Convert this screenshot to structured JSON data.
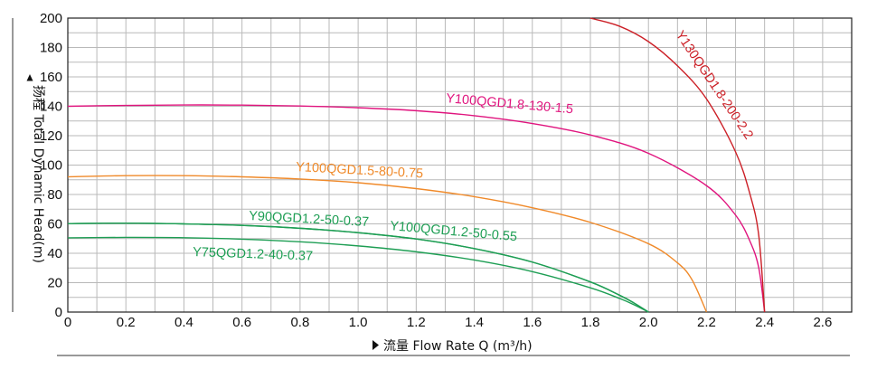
{
  "chart_data": {
    "type": "line",
    "title": "",
    "xlabel": "流量 Flow Rate Q (m³/h)",
    "ylabel": "扬程 Total Dynamic Head(m)",
    "xlim": [
      0,
      2.7
    ],
    "ylim": [
      0,
      200
    ],
    "x_ticks": [
      "0",
      "0.2",
      "0.4",
      "0.6",
      "0.8",
      "1.0",
      "1.2",
      "1.4",
      "1.6",
      "1.8",
      "2.0",
      "2.2",
      "2.4",
      "2.6"
    ],
    "y_ticks": [
      "0",
      "20",
      "40",
      "60",
      "80",
      "100",
      "120",
      "140",
      "160",
      "180",
      "200"
    ],
    "grid": true,
    "legend": "none",
    "series": [
      {
        "name": "Y75QGD1.2-40-0.37",
        "color": "#1e9e54",
        "x": [
          0,
          0.2,
          0.4,
          0.6,
          0.8,
          1.0,
          1.2,
          1.4,
          1.6,
          1.8,
          1.9,
          1.95,
          2.0
        ],
        "y": [
          50.5,
          50.8,
          50.6,
          49.6,
          47.8,
          45.0,
          41.0,
          35.4,
          27.5,
          16.5,
          9.3,
          5.0,
          0
        ]
      },
      {
        "name": "Y90QGD1.2-50-0.37",
        "color": "#1e9e54",
        "x": [
          0,
          0.2,
          0.4,
          0.6,
          0.8,
          1.0,
          1.2,
          1.4,
          1.6,
          1.8,
          1.9,
          1.95,
          2.0
        ],
        "y": [
          60.2,
          60.5,
          60.0,
          59.0,
          57.0,
          54.0,
          49.7,
          43.2,
          34.0,
          20.5,
          11.5,
          6.2,
          0
        ]
      },
      {
        "name": "Y100QGD1.2-50-0.55",
        "color": "#1e9e54",
        "x": [
          0,
          0.2,
          0.4,
          0.6,
          0.8,
          1.0,
          1.2,
          1.4,
          1.6,
          1.8,
          1.9,
          1.95,
          2.0
        ],
        "y": [
          60.2,
          60.5,
          60.0,
          59.0,
          57.0,
          54.0,
          49.7,
          43.2,
          34.0,
          20.5,
          11.5,
          6.2,
          0
        ]
      },
      {
        "name": "Y100QGD1.5-80-0.75",
        "color": "#f08a2a",
        "x": [
          0,
          0.2,
          0.4,
          0.6,
          0.8,
          1.0,
          1.2,
          1.4,
          1.6,
          1.8,
          2.0,
          2.1,
          2.15,
          2.2
        ],
        "y": [
          92,
          92.8,
          92.8,
          92.0,
          90.5,
          88.0,
          84.0,
          78.5,
          71.0,
          61.0,
          46.5,
          33.5,
          22.0,
          0
        ]
      },
      {
        "name": "Y100QGD1.8-130-1.5",
        "color": "#e0147e",
        "x": [
          0,
          0.2,
          0.4,
          0.6,
          0.8,
          1.0,
          1.2,
          1.4,
          1.6,
          1.8,
          2.0,
          2.2,
          2.3,
          2.35,
          2.38,
          2.4
        ],
        "y": [
          140,
          140.6,
          140.9,
          140.8,
          140.2,
          139.0,
          137.0,
          133.6,
          128.3,
          120.5,
          108.0,
          86.0,
          66.0,
          48.0,
          30.0,
          0
        ]
      },
      {
        "name": "Y130QGD1.8-200-2.2",
        "color": "#cc2027",
        "x": [
          1.8,
          1.9,
          2.0,
          2.1,
          2.2,
          2.3,
          2.35,
          2.38,
          2.4
        ],
        "y": [
          200,
          194.5,
          184.0,
          167.5,
          145.0,
          109.0,
          80.0,
          52.0,
          0
        ]
      }
    ]
  }
}
